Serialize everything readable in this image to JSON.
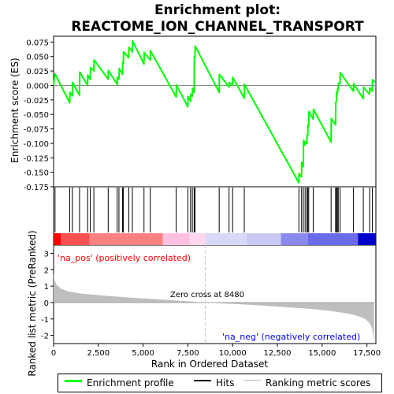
{
  "chart_data": {
    "type": "line",
    "title_line1": "Enrichment plot:",
    "title_line2": "REACTOME_ION_CHANNEL_TRANSPORT",
    "ylabel_top": "Enrichment score (ES)",
    "ylabel_bottom": "Ranked list metric (PreRanked)",
    "xlabel": "Rank in Ordered Dataset",
    "xlim": [
      0,
      18000
    ],
    "xticks": [
      0,
      2500,
      5000,
      7500,
      10000,
      12500,
      15000,
      17500
    ],
    "xtick_labels": [
      "0",
      "2,500",
      "5,000",
      "7,500",
      "10,000",
      "12,500",
      "15,000",
      "17,500"
    ],
    "es_ylim": [
      -0.175,
      0.085
    ],
    "es_yticks": [
      0.075,
      0.05,
      0.025,
      0.0,
      -0.025,
      -0.05,
      -0.075,
      -0.1,
      -0.125,
      -0.15,
      -0.175
    ],
    "es_ytick_labels": [
      "0.075",
      "0.050",
      "0.025",
      "0.000",
      "-0.025",
      "-0.050",
      "-0.075",
      "-0.100",
      "-0.125",
      "-0.150",
      "-0.175"
    ],
    "metric_ylim": [
      -2.5,
      3.5
    ],
    "metric_yticks": [
      3,
      2,
      1,
      0,
      -1,
      -2
    ],
    "metric_ytick_labels": [
      "3",
      "2",
      "1",
      "0",
      "-1",
      "-2"
    ],
    "hits": [
      80,
      900,
      1050,
      1450,
      1900,
      2050,
      2250,
      3050,
      3550,
      3650,
      3850,
      3900,
      4200,
      4400,
      5050,
      5400,
      6850,
      7500,
      7650,
      7750,
      7850,
      7900,
      9250,
      9800,
      10000,
      10650,
      13700,
      13850,
      13950,
      14050,
      14150,
      14200,
      14250,
      14500,
      15500,
      15750,
      15800,
      15850,
      15900,
      16000,
      16750,
      17300,
      17650,
      17800
    ],
    "es_points": [
      [
        0,
        0.0
      ],
      [
        80,
        0.02
      ],
      [
        900,
        -0.03
      ],
      [
        910,
        -0.012
      ],
      [
        1050,
        -0.018
      ],
      [
        1060,
        0.005
      ],
      [
        1450,
        -0.017
      ],
      [
        1460,
        0.023
      ],
      [
        1900,
        0.0
      ],
      [
        1910,
        0.018
      ],
      [
        2050,
        0.01
      ],
      [
        2060,
        0.031
      ],
      [
        2250,
        0.025
      ],
      [
        2260,
        0.044
      ],
      [
        3050,
        0.011
      ],
      [
        3060,
        0.026
      ],
      [
        3550,
        0.002
      ],
      [
        3560,
        0.014
      ],
      [
        3650,
        0.011
      ],
      [
        3660,
        0.029
      ],
      [
        3850,
        0.019
      ],
      [
        3860,
        0.04
      ],
      [
        3900,
        0.038
      ],
      [
        3910,
        0.058
      ],
      [
        4200,
        0.048
      ],
      [
        4210,
        0.066
      ],
      [
        4400,
        0.058
      ],
      [
        4410,
        0.077
      ],
      [
        5050,
        0.037
      ],
      [
        5060,
        0.057
      ],
      [
        5400,
        0.044
      ],
      [
        5410,
        0.06
      ],
      [
        6850,
        -0.02
      ],
      [
        6860,
        0.001
      ],
      [
        7500,
        -0.037
      ],
      [
        7510,
        -0.019
      ],
      [
        7650,
        -0.027
      ],
      [
        7660,
        -0.015
      ],
      [
        7750,
        -0.019
      ],
      [
        7760,
        -0.005
      ],
      [
        7850,
        -0.012
      ],
      [
        7860,
        0.05
      ],
      [
        7900,
        0.049
      ],
      [
        7910,
        0.068
      ],
      [
        9250,
        -0.012
      ],
      [
        9260,
        0.019
      ],
      [
        9800,
        -0.003
      ],
      [
        9810,
        0.005
      ],
      [
        10000,
        0.0
      ],
      [
        10010,
        0.014
      ],
      [
        10650,
        -0.022
      ],
      [
        10660,
        0.002
      ],
      [
        13700,
        -0.168
      ],
      [
        13710,
        -0.152
      ],
      [
        13850,
        -0.158
      ],
      [
        13860,
        -0.133
      ],
      [
        13950,
        -0.14
      ],
      [
        13960,
        -0.095
      ],
      [
        14050,
        -0.103
      ],
      [
        14060,
        -0.097
      ],
      [
        14150,
        -0.1
      ],
      [
        14160,
        -0.085
      ],
      [
        14200,
        -0.085
      ],
      [
        14210,
        -0.068
      ],
      [
        14250,
        -0.07
      ],
      [
        14260,
        -0.045
      ],
      [
        14500,
        -0.058
      ],
      [
        14510,
        -0.041
      ],
      [
        15500,
        -0.098
      ],
      [
        15510,
        -0.057
      ],
      [
        15750,
        -0.068
      ],
      [
        15760,
        -0.029
      ],
      [
        15800,
        -0.028
      ],
      [
        15810,
        -0.012
      ],
      [
        15850,
        -0.015
      ],
      [
        15860,
        -0.005
      ],
      [
        15900,
        -0.007
      ],
      [
        15910,
        0.004
      ],
      [
        16000,
        0.003
      ],
      [
        16010,
        0.022
      ],
      [
        16750,
        -0.01
      ],
      [
        16760,
        0.003
      ],
      [
        17300,
        -0.023
      ],
      [
        17310,
        -0.003
      ],
      [
        17650,
        -0.015
      ],
      [
        17660,
        -0.004
      ],
      [
        17800,
        -0.01
      ],
      [
        17810,
        0.01
      ],
      [
        18000,
        0.005
      ]
    ],
    "metric_points": [
      [
        0,
        1.8
      ],
      [
        50,
        1.4
      ],
      [
        150,
        1.1
      ],
      [
        400,
        0.85
      ],
      [
        800,
        0.68
      ],
      [
        1500,
        0.55
      ],
      [
        2500,
        0.45
      ],
      [
        4000,
        0.32
      ],
      [
        6000,
        0.18
      ],
      [
        8480,
        0.0
      ],
      [
        11000,
        -0.14
      ],
      [
        13000,
        -0.28
      ],
      [
        14500,
        -0.4
      ],
      [
        15500,
        -0.52
      ],
      [
        16500,
        -0.68
      ],
      [
        17000,
        -0.82
      ],
      [
        17400,
        -1.0
      ],
      [
        17650,
        -1.25
      ],
      [
        17800,
        -1.6
      ],
      [
        17900,
        -2.3
      ]
    ],
    "zero_cross_label": "Zero cross at 8480",
    "zero_cross_x": 8480,
    "pos_label": "'na_pos' (positively correlated)",
    "neg_label": "'na_neg' (negatively correlated)",
    "colors": {
      "es_line": "#00ff00",
      "hits": "#000000",
      "metric_fill": "#bebebe",
      "zero_line": "#bebebe",
      "pos_label": "#ff0000",
      "neg_label": "#0000ff"
    },
    "colorbar_segments": [
      [
        0,
        400,
        "#ff0000"
      ],
      [
        400,
        2000,
        "#ff5050"
      ],
      [
        2000,
        6100,
        "#ff8080"
      ],
      [
        6100,
        7600,
        "#ffc0e0"
      ],
      [
        7600,
        8480,
        "#ffd8ee"
      ],
      [
        8480,
        10800,
        "#d8d8f8"
      ],
      [
        10800,
        12700,
        "#c8c8f0"
      ],
      [
        12700,
        14200,
        "#8a8aee"
      ],
      [
        14200,
        17000,
        "#6a6aea"
      ],
      [
        17000,
        18000,
        "#0000cc"
      ]
    ]
  },
  "legend": {
    "items": [
      {
        "label": "Enrichment profile",
        "color": "#00ff00"
      },
      {
        "label": "Hits",
        "color": "#000000"
      },
      {
        "label": "Ranking metric scores",
        "color": "#bebebe"
      }
    ]
  }
}
